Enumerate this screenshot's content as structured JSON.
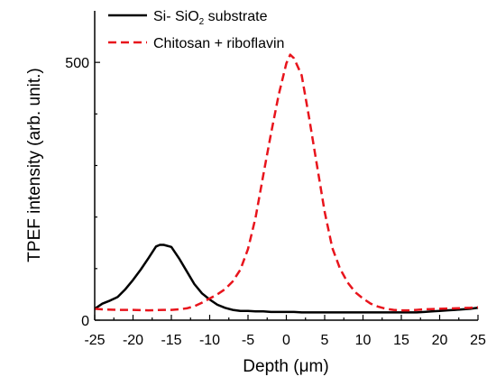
{
  "chart_data": {
    "type": "line",
    "xlabel": "Depth (μm)",
    "ylabel": "TPEF intensity (arb. unit.)",
    "xlim": [
      -25,
      25
    ],
    "ylim": [
      0,
      600
    ],
    "xticks": [
      -25,
      -20,
      -15,
      -10,
      -5,
      0,
      5,
      10,
      15,
      20,
      25
    ],
    "xtick_labels": [
      "-25",
      "-20",
      "-15",
      "-10",
      "-5",
      "0",
      "5",
      "10",
      "15",
      "20",
      "25"
    ],
    "yticks": [
      0,
      500
    ],
    "ytick_labels": [
      "0",
      "500"
    ],
    "legend": {
      "placement": "top-left",
      "entries": [
        {
          "prefix": "Si- SiO",
          "sub": "2",
          "suffix": " substrate"
        },
        {
          "label": "Chitosan + riboflavin"
        }
      ]
    },
    "series": [
      {
        "color": "#000000",
        "dash": "solid",
        "x": [
          -25,
          -24,
          -23,
          -22,
          -21,
          -20,
          -19,
          -18,
          -17,
          -16.5,
          -16,
          -15,
          -14,
          -13,
          -12,
          -11,
          -10,
          -9,
          -8,
          -7,
          -6,
          -5,
          -4,
          -3,
          -2,
          -1,
          0,
          1,
          2,
          3,
          4,
          5,
          6,
          7,
          8,
          9,
          10,
          11,
          12,
          13,
          14,
          15,
          16,
          17,
          18,
          19,
          20,
          21,
          22,
          23,
          24,
          25
        ],
        "y": [
          22,
          32,
          38,
          45,
          60,
          78,
          98,
          120,
          143,
          146,
          146,
          142,
          120,
          95,
          70,
          52,
          40,
          30,
          24,
          20,
          18,
          18,
          17,
          17,
          16,
          16,
          16,
          16,
          15,
          15,
          15,
          15,
          15,
          15,
          15,
          15,
          15,
          15,
          15,
          15,
          15,
          15,
          15,
          15,
          16,
          17,
          18,
          19,
          20,
          21,
          22,
          24
        ]
      },
      {
        "color": "#e8141c",
        "dash": "dashed",
        "x": [
          -25,
          -24,
          -22,
          -20,
          -18,
          -16,
          -15,
          -14,
          -13,
          -12,
          -11,
          -10,
          -9,
          -8,
          -7,
          -6,
          -5,
          -4,
          -3,
          -2,
          -1,
          0,
          0.5,
          1,
          2,
          3,
          4,
          5,
          6,
          7,
          8,
          9,
          10,
          11,
          12,
          13,
          14,
          15,
          16,
          17,
          18,
          20,
          22,
          24,
          25
        ],
        "y": [
          22,
          21,
          20,
          20,
          19,
          20,
          20,
          21,
          23,
          27,
          34,
          42,
          50,
          60,
          75,
          98,
          138,
          200,
          282,
          362,
          437,
          498,
          515,
          508,
          475,
          390,
          300,
          210,
          140,
          100,
          73,
          54,
          42,
          32,
          26,
          22,
          20,
          19,
          19,
          20,
          21,
          22,
          23,
          24,
          25
        ]
      }
    ]
  }
}
